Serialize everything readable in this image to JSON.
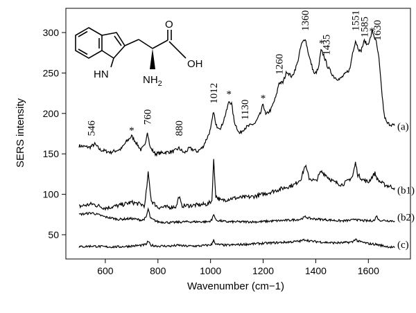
{
  "chart_data": {
    "type": "line",
    "xlabel": "Wavenumber (cm−1)",
    "ylabel": "SERS intensity",
    "xlim": [
      450,
      1760
    ],
    "ylim": [
      20,
      330
    ],
    "xticks": [
      600,
      800,
      1000,
      1200,
      1400,
      1600
    ],
    "yticks": [
      50,
      100,
      150,
      200,
      250,
      300
    ],
    "grid": false,
    "series": [
      {
        "name": "(a)",
        "points": [
          [
            500,
            160
          ],
          [
            540,
            158
          ],
          [
            560,
            162
          ],
          [
            580,
            155
          ],
          [
            620,
            152
          ],
          [
            660,
            156
          ],
          [
            680,
            165
          ],
          [
            700,
            172
          ],
          [
            715,
            165
          ],
          [
            735,
            155
          ],
          [
            750,
            160
          ],
          [
            760,
            178
          ],
          [
            770,
            158
          ],
          [
            790,
            150
          ],
          [
            830,
            152
          ],
          [
            860,
            153
          ],
          [
            880,
            157
          ],
          [
            900,
            151
          ],
          [
            920,
            157
          ],
          [
            950,
            153
          ],
          [
            970,
            158
          ],
          [
            990,
            172
          ],
          [
            1000,
            180
          ],
          [
            1012,
            203
          ],
          [
            1020,
            185
          ],
          [
            1040,
            182
          ],
          [
            1060,
            202
          ],
          [
            1070,
            215
          ],
          [
            1080,
            212
          ],
          [
            1090,
            190
          ],
          [
            1110,
            175
          ],
          [
            1130,
            182
          ],
          [
            1150,
            185
          ],
          [
            1170,
            188
          ],
          [
            1190,
            200
          ],
          [
            1200,
            212
          ],
          [
            1210,
            198
          ],
          [
            1230,
            205
          ],
          [
            1250,
            222
          ],
          [
            1260,
            238
          ],
          [
            1275,
            238
          ],
          [
            1290,
            252
          ],
          [
            1310,
            245
          ],
          [
            1330,
            262
          ],
          [
            1345,
            285
          ],
          [
            1360,
            293
          ],
          [
            1375,
            270
          ],
          [
            1395,
            248
          ],
          [
            1410,
            255
          ],
          [
            1420,
            278
          ],
          [
            1430,
            272
          ],
          [
            1445,
            258
          ],
          [
            1460,
            250
          ],
          [
            1470,
            245
          ],
          [
            1490,
            242
          ],
          [
            1510,
            248
          ],
          [
            1530,
            255
          ],
          [
            1540,
            275
          ],
          [
            1551,
            290
          ],
          [
            1560,
            282
          ],
          [
            1570,
            276
          ],
          [
            1585,
            290
          ],
          [
            1595,
            285
          ],
          [
            1605,
            290
          ],
          [
            1615,
            302
          ],
          [
            1630,
            288
          ],
          [
            1640,
            268
          ],
          [
            1650,
            230
          ],
          [
            1660,
            198
          ],
          [
            1670,
            188
          ],
          [
            1700,
            185
          ]
        ]
      },
      {
        "name": "(b1)",
        "points": [
          [
            500,
            85
          ],
          [
            550,
            88
          ],
          [
            600,
            83
          ],
          [
            650,
            86
          ],
          [
            700,
            90
          ],
          [
            730,
            88
          ],
          [
            750,
            86
          ],
          [
            763,
            126
          ],
          [
            775,
            92
          ],
          [
            800,
            84
          ],
          [
            840,
            84
          ],
          [
            870,
            85
          ],
          [
            880,
            98
          ],
          [
            890,
            86
          ],
          [
            920,
            86
          ],
          [
            960,
            87
          ],
          [
            990,
            88
          ],
          [
            1005,
            92
          ],
          [
            1012,
            142
          ],
          [
            1020,
            98
          ],
          [
            1040,
            92
          ],
          [
            1080,
            95
          ],
          [
            1120,
            96
          ],
          [
            1160,
            97
          ],
          [
            1200,
            100
          ],
          [
            1240,
            104
          ],
          [
            1280,
            108
          ],
          [
            1320,
            112
          ],
          [
            1345,
            120
          ],
          [
            1360,
            136
          ],
          [
            1375,
            120
          ],
          [
            1400,
            116
          ],
          [
            1420,
            128
          ],
          [
            1435,
            125
          ],
          [
            1450,
            120
          ],
          [
            1470,
            115
          ],
          [
            1500,
            112
          ],
          [
            1520,
            116
          ],
          [
            1540,
            122
          ],
          [
            1551,
            139
          ],
          [
            1560,
            124
          ],
          [
            1580,
            118
          ],
          [
            1600,
            115
          ],
          [
            1615,
            122
          ],
          [
            1625,
            126
          ],
          [
            1635,
            118
          ],
          [
            1660,
            112
          ],
          [
            1680,
            110
          ],
          [
            1700,
            108
          ]
        ]
      },
      {
        "name": "(b2)",
        "points": [
          [
            500,
            75
          ],
          [
            550,
            77
          ],
          [
            600,
            72
          ],
          [
            650,
            69
          ],
          [
            700,
            70
          ],
          [
            740,
            68
          ],
          [
            755,
            71
          ],
          [
            763,
            82
          ],
          [
            772,
            70
          ],
          [
            800,
            66
          ],
          [
            850,
            65
          ],
          [
            900,
            66
          ],
          [
            950,
            66
          ],
          [
            990,
            66
          ],
          [
            1005,
            68
          ],
          [
            1012,
            76
          ],
          [
            1020,
            68
          ],
          [
            1060,
            66
          ],
          [
            1120,
            66
          ],
          [
            1180,
            66
          ],
          [
            1240,
            67
          ],
          [
            1300,
            68
          ],
          [
            1340,
            69
          ],
          [
            1360,
            72
          ],
          [
            1380,
            70
          ],
          [
            1420,
            69
          ],
          [
            1460,
            68
          ],
          [
            1500,
            67
          ],
          [
            1540,
            68
          ],
          [
            1551,
            70
          ],
          [
            1560,
            68
          ],
          [
            1600,
            67
          ],
          [
            1625,
            68
          ],
          [
            1630,
            74
          ],
          [
            1640,
            68
          ],
          [
            1700,
            67
          ]
        ]
      },
      {
        "name": "(c)",
        "points": [
          [
            500,
            35
          ],
          [
            550,
            36
          ],
          [
            600,
            35
          ],
          [
            650,
            35
          ],
          [
            700,
            36
          ],
          [
            740,
            37
          ],
          [
            755,
            38
          ],
          [
            763,
            42
          ],
          [
            772,
            37
          ],
          [
            800,
            36
          ],
          [
            850,
            36
          ],
          [
            880,
            37
          ],
          [
            900,
            36
          ],
          [
            950,
            36
          ],
          [
            990,
            37
          ],
          [
            1005,
            38
          ],
          [
            1012,
            44
          ],
          [
            1020,
            38
          ],
          [
            1060,
            37
          ],
          [
            1120,
            38
          ],
          [
            1180,
            39
          ],
          [
            1240,
            40
          ],
          [
            1300,
            41
          ],
          [
            1340,
            42
          ],
          [
            1360,
            44
          ],
          [
            1380,
            42
          ],
          [
            1420,
            41
          ],
          [
            1460,
            40
          ],
          [
            1500,
            40
          ],
          [
            1540,
            41
          ],
          [
            1551,
            45
          ],
          [
            1560,
            42
          ],
          [
            1600,
            39
          ],
          [
            1630,
            38
          ],
          [
            1660,
            36
          ],
          [
            1700,
            34
          ]
        ]
      }
    ],
    "peak_labels": [
      {
        "text": "546",
        "x": 546,
        "y": 172
      },
      {
        "text": "*",
        "x": 700,
        "y": 180
      },
      {
        "text": "760",
        "x": 760,
        "y": 186
      },
      {
        "text": "880",
        "x": 880,
        "y": 172
      },
      {
        "text": "1012",
        "x": 1012,
        "y": 212
      },
      {
        "text": "*",
        "x": 1070,
        "y": 225
      },
      {
        "text": "1130",
        "x": 1130,
        "y": 192
      },
      {
        "text": "*",
        "x": 1200,
        "y": 220
      },
      {
        "text": "1260",
        "x": 1260,
        "y": 248
      },
      {
        "text": "1360",
        "x": 1360,
        "y": 302
      },
      {
        "text": "*",
        "x": 1422,
        "y": 288
      },
      {
        "text": "1435",
        "x": 1440,
        "y": 272
      },
      {
        "text": "1551",
        "x": 1551,
        "y": 302
      },
      {
        "text": "1585",
        "x": 1585,
        "y": 294
      },
      {
        "text": "*",
        "x": 1613,
        "y": 303
      },
      {
        "text": "1630",
        "x": 1633,
        "y": 290
      }
    ],
    "curve_labels": [
      "(a)",
      "(b1)",
      "(b2)",
      "(c)"
    ],
    "molecule_labels": [
      "O",
      "OH",
      "HN",
      "NH2"
    ]
  }
}
